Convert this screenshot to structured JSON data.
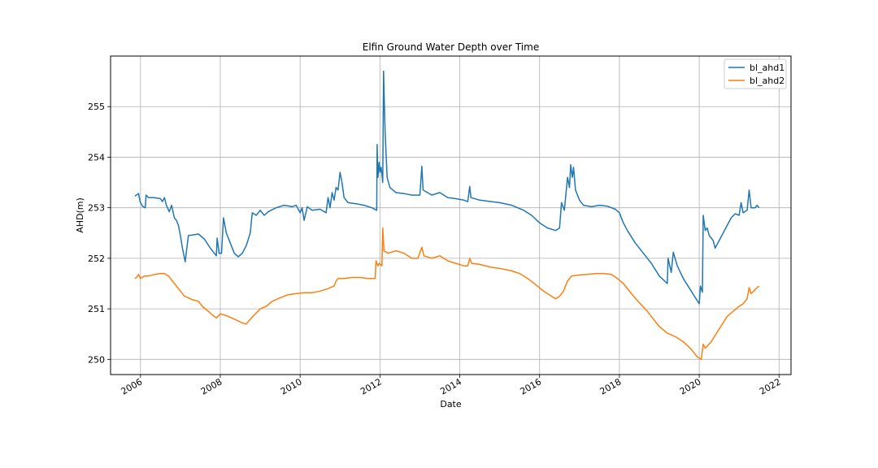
{
  "chart_data": {
    "type": "line",
    "title": "Elfin Ground Water Depth over Time",
    "xlabel": "Date",
    "ylabel": "AHD(m)",
    "xlim": [
      2005.25,
      2022.3
    ],
    "ylim": [
      249.7,
      256.0
    ],
    "x_ticks": [
      {
        "value": 2006,
        "label": "2006"
      },
      {
        "value": 2008,
        "label": "2008"
      },
      {
        "value": 2010,
        "label": "2010"
      },
      {
        "value": 2012,
        "label": "2012"
      },
      {
        "value": 2014,
        "label": "2014"
      },
      {
        "value": 2016,
        "label": "2016"
      },
      {
        "value": 2018,
        "label": "2018"
      },
      {
        "value": 2020,
        "label": "2020"
      },
      {
        "value": 2022,
        "label": "2022"
      }
    ],
    "y_ticks": [
      {
        "value": 250,
        "label": "250"
      },
      {
        "value": 251,
        "label": "251"
      },
      {
        "value": 252,
        "label": "252"
      },
      {
        "value": 253,
        "label": "253"
      },
      {
        "value": 254,
        "label": "254"
      },
      {
        "value": 255,
        "label": "255"
      }
    ],
    "grid": true,
    "legend_position": "top-right",
    "series": [
      {
        "name": "bl_ahd1",
        "color": "#1f77b4",
        "points": [
          [
            2005.86,
            253.23
          ],
          [
            2005.95,
            253.28
          ],
          [
            2005.99,
            253.12
          ],
          [
            2006.05,
            253.03
          ],
          [
            2006.12,
            253.0
          ],
          [
            2006.14,
            253.25
          ],
          [
            2006.2,
            253.2
          ],
          [
            2006.35,
            253.2
          ],
          [
            2006.5,
            253.18
          ],
          [
            2006.55,
            253.12
          ],
          [
            2006.6,
            253.2
          ],
          [
            2006.65,
            253.05
          ],
          [
            2006.72,
            252.92
          ],
          [
            2006.78,
            253.05
          ],
          [
            2006.85,
            252.8
          ],
          [
            2006.9,
            252.75
          ],
          [
            2006.95,
            252.65
          ],
          [
            2007.0,
            252.45
          ],
          [
            2007.05,
            252.2
          ],
          [
            2007.12,
            251.93
          ],
          [
            2007.2,
            252.45
          ],
          [
            2007.3,
            252.46
          ],
          [
            2007.45,
            252.48
          ],
          [
            2007.6,
            252.38
          ],
          [
            2007.75,
            252.2
          ],
          [
            2007.9,
            252.05
          ],
          [
            2007.92,
            252.4
          ],
          [
            2007.97,
            252.1
          ],
          [
            2008.03,
            252.1
          ],
          [
            2008.08,
            252.8
          ],
          [
            2008.15,
            252.5
          ],
          [
            2008.25,
            252.3
          ],
          [
            2008.35,
            252.1
          ],
          [
            2008.45,
            252.03
          ],
          [
            2008.55,
            252.1
          ],
          [
            2008.65,
            252.25
          ],
          [
            2008.75,
            252.5
          ],
          [
            2008.8,
            252.9
          ],
          [
            2008.9,
            252.85
          ],
          [
            2009.0,
            252.95
          ],
          [
            2009.1,
            252.85
          ],
          [
            2009.2,
            252.92
          ],
          [
            2009.4,
            253.0
          ],
          [
            2009.6,
            253.05
          ],
          [
            2009.8,
            253.02
          ],
          [
            2009.9,
            253.05
          ],
          [
            2010.0,
            252.9
          ],
          [
            2010.05,
            253.0
          ],
          [
            2010.1,
            252.75
          ],
          [
            2010.18,
            253.02
          ],
          [
            2010.3,
            252.95
          ],
          [
            2010.5,
            252.97
          ],
          [
            2010.65,
            252.9
          ],
          [
            2010.7,
            253.2
          ],
          [
            2010.75,
            253.0
          ],
          [
            2010.8,
            253.3
          ],
          [
            2010.85,
            253.15
          ],
          [
            2010.9,
            253.4
          ],
          [
            2010.95,
            253.35
          ],
          [
            2011.0,
            253.7
          ],
          [
            2011.05,
            253.5
          ],
          [
            2011.1,
            253.2
          ],
          [
            2011.2,
            253.1
          ],
          [
            2011.4,
            253.08
          ],
          [
            2011.6,
            253.05
          ],
          [
            2011.8,
            253.0
          ],
          [
            2011.92,
            252.95
          ],
          [
            2011.93,
            254.25
          ],
          [
            2011.95,
            253.6
          ],
          [
            2011.98,
            253.9
          ],
          [
            2012.0,
            253.7
          ],
          [
            2012.03,
            253.8
          ],
          [
            2012.07,
            253.5
          ],
          [
            2012.09,
            255.7
          ],
          [
            2012.13,
            254.5
          ],
          [
            2012.18,
            253.6
          ],
          [
            2012.25,
            253.4
          ],
          [
            2012.4,
            253.3
          ],
          [
            2012.6,
            253.28
          ],
          [
            2012.8,
            253.25
          ],
          [
            2013.0,
            253.25
          ],
          [
            2013.05,
            253.82
          ],
          [
            2013.08,
            253.35
          ],
          [
            2013.3,
            253.25
          ],
          [
            2013.5,
            253.3
          ],
          [
            2013.7,
            253.2
          ],
          [
            2013.9,
            253.18
          ],
          [
            2014.1,
            253.15
          ],
          [
            2014.2,
            253.12
          ],
          [
            2014.25,
            253.42
          ],
          [
            2014.28,
            253.2
          ],
          [
            2014.5,
            253.15
          ],
          [
            2014.8,
            253.12
          ],
          [
            2015.0,
            253.1
          ],
          [
            2015.3,
            253.05
          ],
          [
            2015.6,
            252.95
          ],
          [
            2015.8,
            252.85
          ],
          [
            2016.0,
            252.7
          ],
          [
            2016.2,
            252.6
          ],
          [
            2016.4,
            252.55
          ],
          [
            2016.5,
            252.6
          ],
          [
            2016.55,
            253.1
          ],
          [
            2016.62,
            252.95
          ],
          [
            2016.7,
            253.6
          ],
          [
            2016.75,
            253.4
          ],
          [
            2016.78,
            253.85
          ],
          [
            2016.82,
            253.6
          ],
          [
            2016.85,
            253.8
          ],
          [
            2016.9,
            253.35
          ],
          [
            2017.0,
            253.15
          ],
          [
            2017.1,
            253.05
          ],
          [
            2017.3,
            253.02
          ],
          [
            2017.5,
            253.05
          ],
          [
            2017.7,
            253.03
          ],
          [
            2017.9,
            252.97
          ],
          [
            2018.0,
            252.9
          ],
          [
            2018.1,
            252.7
          ],
          [
            2018.2,
            252.55
          ],
          [
            2018.4,
            252.3
          ],
          [
            2018.6,
            252.1
          ],
          [
            2018.8,
            251.9
          ],
          [
            2019.0,
            251.65
          ],
          [
            2019.2,
            251.5
          ],
          [
            2019.22,
            252.0
          ],
          [
            2019.3,
            251.72
          ],
          [
            2019.35,
            252.12
          ],
          [
            2019.45,
            251.85
          ],
          [
            2019.6,
            251.6
          ],
          [
            2019.8,
            251.35
          ],
          [
            2020.0,
            251.1
          ],
          [
            2020.03,
            251.45
          ],
          [
            2020.08,
            251.33
          ],
          [
            2020.1,
            252.85
          ],
          [
            2020.15,
            252.55
          ],
          [
            2020.2,
            252.6
          ],
          [
            2020.25,
            252.45
          ],
          [
            2020.35,
            252.35
          ],
          [
            2020.4,
            252.2
          ],
          [
            2020.5,
            252.35
          ],
          [
            2020.6,
            252.5
          ],
          [
            2020.7,
            252.65
          ],
          [
            2020.8,
            252.8
          ],
          [
            2020.9,
            252.88
          ],
          [
            2021.0,
            252.85
          ],
          [
            2021.05,
            253.1
          ],
          [
            2021.1,
            252.9
          ],
          [
            2021.2,
            252.95
          ],
          [
            2021.25,
            253.35
          ],
          [
            2021.3,
            253.0
          ],
          [
            2021.4,
            253.0
          ],
          [
            2021.45,
            253.05
          ],
          [
            2021.5,
            253.0
          ]
        ]
      },
      {
        "name": "bl_ahd2",
        "color": "#ff7f0e",
        "points": [
          [
            2005.86,
            251.6
          ],
          [
            2005.9,
            251.62
          ],
          [
            2005.95,
            251.68
          ],
          [
            2006.0,
            251.6
          ],
          [
            2006.1,
            251.65
          ],
          [
            2006.2,
            251.65
          ],
          [
            2006.35,
            251.68
          ],
          [
            2006.5,
            251.7
          ],
          [
            2006.6,
            251.7
          ],
          [
            2006.7,
            251.65
          ],
          [
            2006.8,
            251.55
          ],
          [
            2006.9,
            251.45
          ],
          [
            2007.0,
            251.35
          ],
          [
            2007.1,
            251.25
          ],
          [
            2007.2,
            251.22
          ],
          [
            2007.3,
            251.18
          ],
          [
            2007.45,
            251.15
          ],
          [
            2007.55,
            251.05
          ],
          [
            2007.7,
            250.95
          ],
          [
            2007.8,
            250.88
          ],
          [
            2007.9,
            250.82
          ],
          [
            2008.0,
            250.9
          ],
          [
            2008.1,
            250.88
          ],
          [
            2008.2,
            250.85
          ],
          [
            2008.4,
            250.78
          ],
          [
            2008.55,
            250.72
          ],
          [
            2008.65,
            250.7
          ],
          [
            2008.7,
            250.75
          ],
          [
            2008.85,
            250.88
          ],
          [
            2009.0,
            251.0
          ],
          [
            2009.15,
            251.05
          ],
          [
            2009.3,
            251.15
          ],
          [
            2009.5,
            251.22
          ],
          [
            2009.7,
            251.28
          ],
          [
            2009.9,
            251.3
          ],
          [
            2010.1,
            251.32
          ],
          [
            2010.3,
            251.32
          ],
          [
            2010.5,
            251.35
          ],
          [
            2010.7,
            251.4
          ],
          [
            2010.85,
            251.45
          ],
          [
            2010.9,
            251.55
          ],
          [
            2010.95,
            251.6
          ],
          [
            2011.1,
            251.6
          ],
          [
            2011.3,
            251.62
          ],
          [
            2011.5,
            251.62
          ],
          [
            2011.7,
            251.6
          ],
          [
            2011.88,
            251.6
          ],
          [
            2011.9,
            251.95
          ],
          [
            2011.95,
            251.85
          ],
          [
            2011.98,
            251.9
          ],
          [
            2012.05,
            251.85
          ],
          [
            2012.07,
            252.6
          ],
          [
            2012.1,
            252.15
          ],
          [
            2012.2,
            252.1
          ],
          [
            2012.4,
            252.15
          ],
          [
            2012.6,
            252.1
          ],
          [
            2012.8,
            252.0
          ],
          [
            2012.95,
            252.0
          ],
          [
            2013.05,
            252.22
          ],
          [
            2013.1,
            252.05
          ],
          [
            2013.3,
            252.0
          ],
          [
            2013.5,
            252.05
          ],
          [
            2013.7,
            251.95
          ],
          [
            2013.9,
            251.9
          ],
          [
            2014.1,
            251.85
          ],
          [
            2014.2,
            251.85
          ],
          [
            2014.25,
            252.0
          ],
          [
            2014.3,
            251.9
          ],
          [
            2014.5,
            251.88
          ],
          [
            2014.8,
            251.82
          ],
          [
            2015.0,
            251.8
          ],
          [
            2015.3,
            251.75
          ],
          [
            2015.5,
            251.7
          ],
          [
            2015.7,
            251.6
          ],
          [
            2015.9,
            251.48
          ],
          [
            2016.1,
            251.35
          ],
          [
            2016.3,
            251.25
          ],
          [
            2016.4,
            251.2
          ],
          [
            2016.5,
            251.25
          ],
          [
            2016.6,
            251.35
          ],
          [
            2016.7,
            251.55
          ],
          [
            2016.8,
            251.65
          ],
          [
            2017.0,
            251.67
          ],
          [
            2017.2,
            251.68
          ],
          [
            2017.4,
            251.7
          ],
          [
            2017.6,
            251.7
          ],
          [
            2017.8,
            251.68
          ],
          [
            2017.95,
            251.6
          ],
          [
            2018.1,
            251.5
          ],
          [
            2018.3,
            251.3
          ],
          [
            2018.5,
            251.12
          ],
          [
            2018.7,
            250.95
          ],
          [
            2018.85,
            250.8
          ],
          [
            2019.0,
            250.65
          ],
          [
            2019.2,
            250.52
          ],
          [
            2019.4,
            250.45
          ],
          [
            2019.6,
            250.35
          ],
          [
            2019.8,
            250.2
          ],
          [
            2019.95,
            250.05
          ],
          [
            2020.05,
            250.0
          ],
          [
            2020.1,
            250.3
          ],
          [
            2020.15,
            250.22
          ],
          [
            2020.3,
            250.35
          ],
          [
            2020.5,
            250.6
          ],
          [
            2020.7,
            250.85
          ],
          [
            2020.85,
            250.95
          ],
          [
            2021.0,
            251.05
          ],
          [
            2021.1,
            251.1
          ],
          [
            2021.2,
            251.2
          ],
          [
            2021.25,
            251.42
          ],
          [
            2021.3,
            251.3
          ],
          [
            2021.45,
            251.42
          ],
          [
            2021.5,
            251.45
          ]
        ]
      }
    ]
  }
}
